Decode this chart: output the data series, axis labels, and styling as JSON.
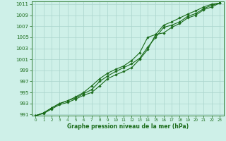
{
  "x": [
    0,
    1,
    2,
    3,
    4,
    5,
    6,
    7,
    8,
    9,
    10,
    11,
    12,
    13,
    14,
    15,
    16,
    17,
    18,
    19,
    20,
    21,
    22,
    23
  ],
  "line1": [
    990.8,
    991.3,
    992.2,
    993.0,
    993.5,
    994.0,
    994.8,
    995.5,
    997.0,
    998.0,
    998.8,
    999.5,
    1000.2,
    1001.2,
    1003.2,
    1005.0,
    1006.8,
    1007.2,
    1007.8,
    1008.8,
    1009.3,
    1010.2,
    1010.8,
    1011.2
  ],
  "line2": [
    990.8,
    991.2,
    992.0,
    992.8,
    993.2,
    993.8,
    994.5,
    995.0,
    996.2,
    997.5,
    998.2,
    998.8,
    999.5,
    1001.0,
    1002.8,
    1005.5,
    1005.8,
    1006.8,
    1007.5,
    1008.5,
    1009.0,
    1010.0,
    1010.5,
    1011.2
  ],
  "line3": [
    990.8,
    991.3,
    992.2,
    993.0,
    993.5,
    994.2,
    995.0,
    996.2,
    997.5,
    998.5,
    999.2,
    999.8,
    1000.8,
    1002.2,
    1005.0,
    1005.5,
    1007.2,
    1007.8,
    1008.5,
    1009.2,
    1009.8,
    1010.5,
    1011.0,
    1011.2
  ],
  "ylim_min": 990.8,
  "ylim_max": 1011.5,
  "yticks": [
    991,
    993,
    995,
    997,
    999,
    1001,
    1003,
    1005,
    1007,
    1009,
    1011
  ],
  "xticks": [
    0,
    1,
    2,
    3,
    4,
    5,
    6,
    7,
    8,
    9,
    10,
    11,
    12,
    13,
    14,
    15,
    16,
    17,
    18,
    19,
    20,
    21,
    22,
    23
  ],
  "xlabel": "Graphe pression niveau de la mer (hPa)",
  "line_color": "#1a6b1a",
  "marker": "D",
  "marker_size": 1.8,
  "bg_color": "#cef0e8",
  "grid_color": "#aad4cc",
  "tick_color": "#1a6b1a",
  "line_width": 0.8
}
